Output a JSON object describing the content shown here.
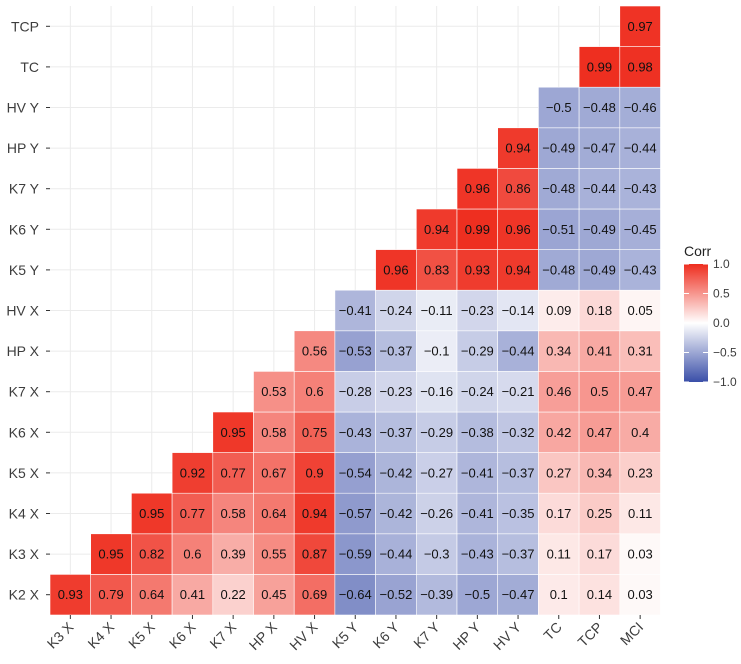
{
  "chart_data": {
    "type": "heatmap",
    "title": "",
    "x_labels": [
      "K3 X",
      "K4 X",
      "K5 X",
      "K6 X",
      "K7 X",
      "HP X",
      "HV X",
      "K5 Y",
      "K6 Y",
      "K7 Y",
      "HP Y",
      "HV Y",
      "TC",
      "TCP",
      "MCI"
    ],
    "y_labels": [
      "K2 X",
      "K3 X",
      "K4 X",
      "K5 X",
      "K6 X",
      "K7 X",
      "HP X",
      "HV X",
      "K5 Y",
      "K6 Y",
      "K7 Y",
      "HP Y",
      "HV Y",
      "TC",
      "TCP"
    ],
    "values": [
      [
        0.93,
        0.79,
        0.64,
        0.41,
        0.22,
        0.45,
        0.69,
        -0.64,
        -0.52,
        -0.39,
        -0.5,
        -0.47,
        0.1,
        0.14,
        0.03
      ],
      [
        null,
        0.95,
        0.82,
        0.6,
        0.39,
        0.55,
        0.87,
        -0.59,
        -0.44,
        -0.3,
        -0.43,
        -0.37,
        0.11,
        0.17,
        0.03
      ],
      [
        null,
        null,
        0.95,
        0.77,
        0.58,
        0.64,
        0.94,
        -0.57,
        -0.42,
        -0.26,
        -0.41,
        -0.35,
        0.17,
        0.25,
        0.11
      ],
      [
        null,
        null,
        null,
        0.92,
        0.77,
        0.67,
        0.9,
        -0.54,
        -0.42,
        -0.27,
        -0.41,
        -0.37,
        0.27,
        0.34,
        0.23
      ],
      [
        null,
        null,
        null,
        null,
        0.95,
        0.58,
        0.75,
        -0.43,
        -0.37,
        -0.29,
        -0.38,
        -0.32,
        0.42,
        0.47,
        0.4
      ],
      [
        null,
        null,
        null,
        null,
        null,
        0.53,
        0.6,
        -0.28,
        -0.23,
        -0.16,
        -0.24,
        -0.21,
        0.46,
        0.5,
        0.47
      ],
      [
        null,
        null,
        null,
        null,
        null,
        null,
        0.56,
        -0.53,
        -0.37,
        -0.1,
        -0.29,
        -0.44,
        0.34,
        0.41,
        0.31
      ],
      [
        null,
        null,
        null,
        null,
        null,
        null,
        null,
        -0.41,
        -0.24,
        -0.11,
        -0.23,
        -0.14,
        0.09,
        0.18,
        0.05
      ],
      [
        null,
        null,
        null,
        null,
        null,
        null,
        null,
        null,
        0.96,
        0.83,
        0.93,
        0.94,
        -0.48,
        -0.49,
        -0.43
      ],
      [
        null,
        null,
        null,
        null,
        null,
        null,
        null,
        null,
        null,
        0.94,
        0.99,
        0.96,
        -0.51,
        -0.49,
        -0.45
      ],
      [
        null,
        null,
        null,
        null,
        null,
        null,
        null,
        null,
        null,
        null,
        0.96,
        0.86,
        -0.48,
        -0.44,
        -0.43
      ],
      [
        null,
        null,
        null,
        null,
        null,
        null,
        null,
        null,
        null,
        null,
        null,
        0.94,
        -0.49,
        -0.47,
        -0.44
      ],
      [
        null,
        null,
        null,
        null,
        null,
        null,
        null,
        null,
        null,
        null,
        null,
        null,
        -0.5,
        -0.48,
        -0.46
      ],
      [
        null,
        null,
        null,
        null,
        null,
        null,
        null,
        null,
        null,
        null,
        null,
        null,
        null,
        0.99,
        0.98
      ],
      [
        null,
        null,
        null,
        null,
        null,
        null,
        null,
        null,
        null,
        null,
        null,
        null,
        null,
        null,
        0.97
      ]
    ],
    "range": [
      -1,
      1
    ],
    "legend": {
      "title": "Corr",
      "ticks": [
        1.0,
        0.5,
        0.0,
        -0.5,
        -1.0
      ],
      "tick_labels": [
        "1.0",
        "0.5",
        "0.0",
        "−0.5",
        "−1.0"
      ],
      "position": "right"
    },
    "colors": {
      "low": "#3a4ea8",
      "mid": "#ffffff",
      "high": "#ee2d1e"
    },
    "grid": true
  }
}
